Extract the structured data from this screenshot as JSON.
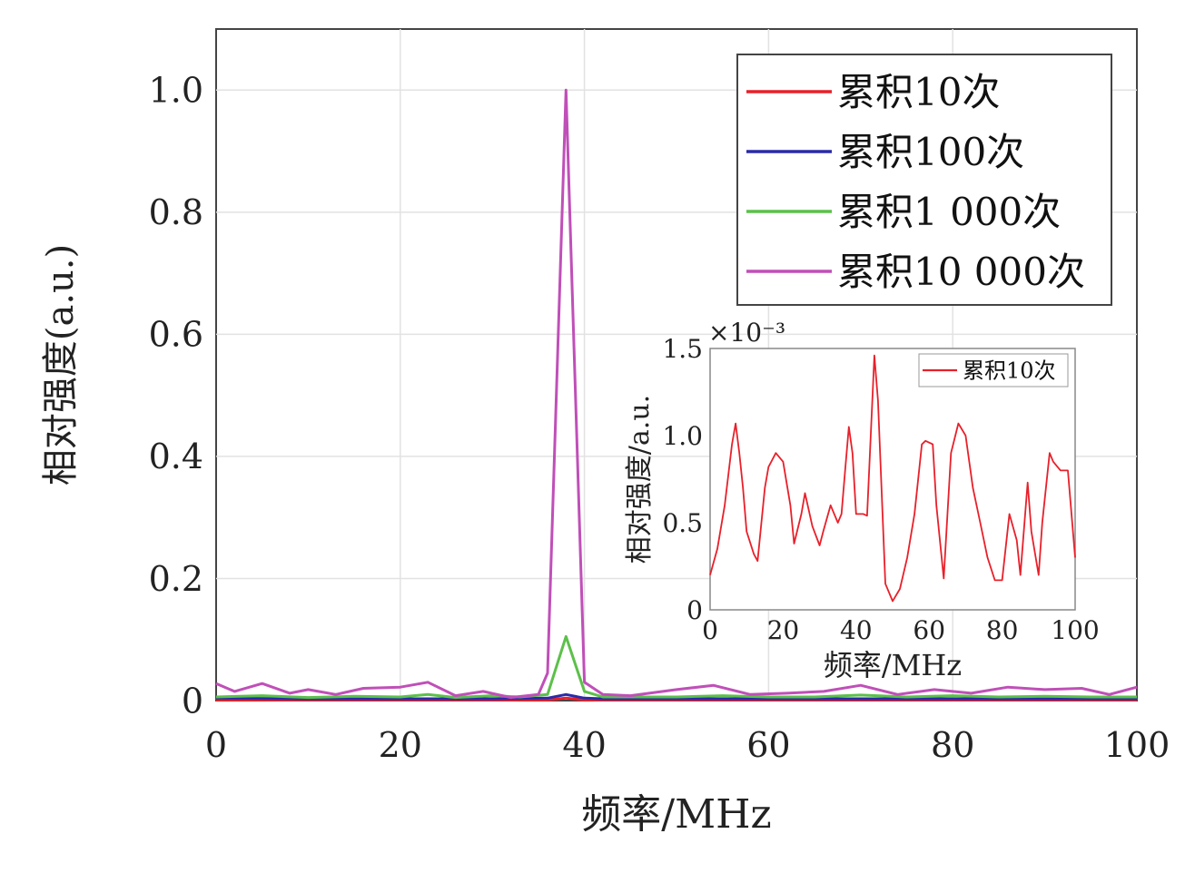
{
  "chart_data": [
    {
      "type": "line",
      "xlabel": "频率/MHz",
      "ylabel": "相对强度(a.u.)",
      "xlim": [
        0,
        100
      ],
      "ylim": [
        0,
        1.1
      ],
      "xticks": [
        0,
        20,
        40,
        60,
        80,
        100
      ],
      "yticks": [
        0,
        0.2,
        0.4,
        0.6,
        0.8,
        1.0
      ],
      "ytick_labels": [
        "0",
        "0.2",
        "0.4",
        "0.6",
        "0.8",
        "1.0"
      ],
      "grid": true,
      "legend_position": "top-right",
      "series": [
        {
          "name": "累积10次",
          "color": "#e8202a",
          "x": [
            0,
            10,
            20,
            30,
            36,
            38,
            40,
            42,
            50,
            60,
            70,
            80,
            90,
            100
          ],
          "y": [
            0.001,
            0.001,
            0.001,
            0.001,
            0.001,
            0.004,
            0.001,
            0.001,
            0.001,
            0.001,
            0.001,
            0.001,
            0.001,
            0.001
          ]
        },
        {
          "name": "累积100次",
          "color": "#2a2aa8",
          "x": [
            0,
            10,
            20,
            30,
            36,
            38,
            40,
            42,
            50,
            60,
            70,
            80,
            90,
            100
          ],
          "y": [
            0.004,
            0.003,
            0.003,
            0.003,
            0.004,
            0.01,
            0.004,
            0.003,
            0.003,
            0.003,
            0.003,
            0.003,
            0.003,
            0.003
          ]
        },
        {
          "name": "累积1 000次",
          "color": "#5cc04a",
          "x": [
            0,
            5,
            10,
            15,
            20,
            23,
            26,
            30,
            33,
            36,
            38,
            40,
            42,
            46,
            50,
            55,
            60,
            65,
            70,
            75,
            80,
            85,
            90,
            95,
            100
          ],
          "y": [
            0.006,
            0.008,
            0.005,
            0.007,
            0.006,
            0.01,
            0.005,
            0.008,
            0.006,
            0.01,
            0.105,
            0.015,
            0.006,
            0.006,
            0.006,
            0.008,
            0.006,
            0.006,
            0.009,
            0.006,
            0.008,
            0.006,
            0.007,
            0.006,
            0.006
          ]
        },
        {
          "name": "累积10 000次",
          "color": "#c04fb8",
          "x": [
            0,
            2,
            5,
            8,
            10,
            13,
            16,
            20,
            23,
            26,
            29,
            32,
            35,
            36,
            38,
            40,
            42,
            45,
            50,
            54,
            58,
            62,
            66,
            70,
            74,
            78,
            82,
            86,
            90,
            94,
            97,
            100
          ],
          "y": [
            0.028,
            0.015,
            0.028,
            0.012,
            0.018,
            0.01,
            0.02,
            0.022,
            0.03,
            0.008,
            0.015,
            0.005,
            0.01,
            0.045,
            1.0,
            0.03,
            0.01,
            0.008,
            0.018,
            0.025,
            0.01,
            0.012,
            0.015,
            0.025,
            0.01,
            0.018,
            0.012,
            0.022,
            0.018,
            0.02,
            0.01,
            0.022
          ]
        }
      ]
    },
    {
      "type": "line",
      "xlabel": "频率/MHz",
      "ylabel": "相对强度/a.u.",
      "scale_note": "×10⁻³",
      "xlim": [
        0,
        100
      ],
      "ylim": [
        0,
        1.5
      ],
      "xticks": [
        0,
        20,
        40,
        60,
        80,
        100
      ],
      "yticks": [
        0,
        0.5,
        1.0,
        1.5
      ],
      "ytick_labels": [
        "0",
        "0.5",
        "1.0",
        "1.5"
      ],
      "legend_position": "top-right",
      "series": [
        {
          "name": "累积10次",
          "color": "#e8202a",
          "x": [
            0,
            2,
            4,
            6,
            7,
            8,
            9,
            10,
            12,
            13,
            15,
            16,
            18,
            20,
            22,
            23,
            25,
            26,
            28,
            30,
            31,
            33,
            35,
            36,
            37,
            38,
            39,
            40,
            41,
            42,
            43,
            44,
            45,
            46,
            48,
            50,
            52,
            54,
            56,
            58,
            59,
            61,
            62,
            64,
            66,
            68,
            70,
            72,
            74,
            76,
            78,
            80,
            82,
            84,
            85,
            87,
            88,
            90,
            91,
            93,
            94,
            96,
            98,
            100
          ],
          "y": [
            0.2,
            0.35,
            0.6,
            0.95,
            1.07,
            0.9,
            0.7,
            0.45,
            0.32,
            0.28,
            0.7,
            0.82,
            0.9,
            0.85,
            0.6,
            0.38,
            0.55,
            0.67,
            0.48,
            0.37,
            0.45,
            0.6,
            0.5,
            0.55,
            0.8,
            1.05,
            0.9,
            0.55,
            0.55,
            0.55,
            0.54,
            1.0,
            1.46,
            1.2,
            0.15,
            0.05,
            0.12,
            0.3,
            0.55,
            0.95,
            0.97,
            0.95,
            0.6,
            0.18,
            0.9,
            1.07,
            1.0,
            0.7,
            0.5,
            0.3,
            0.17,
            0.17,
            0.55,
            0.4,
            0.2,
            0.73,
            0.45,
            0.2,
            0.5,
            0.9,
            0.85,
            0.8,
            0.8,
            0.3
          ]
        }
      ]
    }
  ]
}
